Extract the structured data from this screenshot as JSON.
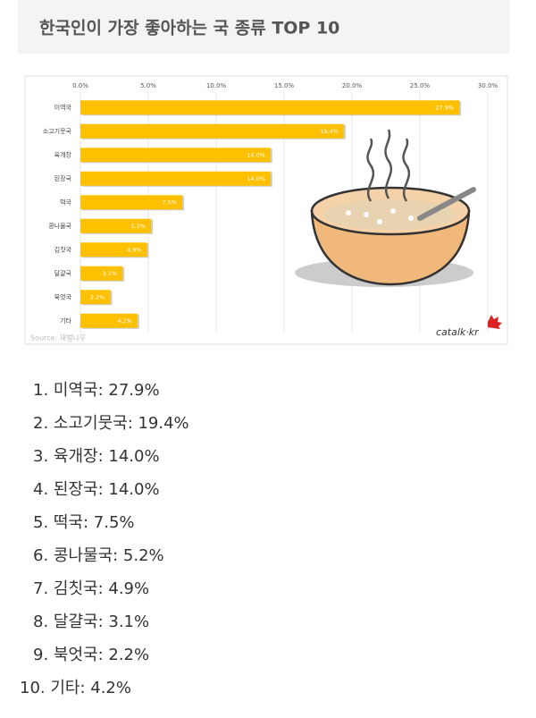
{
  "header": {
    "title": "한국인이 가장 좋아하는 국 종류 TOP 10"
  },
  "chart_data": {
    "type": "hbar",
    "categories": [
      "미역국",
      "소고기뭇국",
      "육개장",
      "된장국",
      "떡국",
      "콩나물국",
      "김칫국",
      "달걀국",
      "북엇국",
      "기타"
    ],
    "values": [
      27.9,
      19.4,
      14.0,
      14.0,
      7.5,
      5.2,
      4.9,
      3.1,
      2.2,
      4.2
    ],
    "value_labels": [
      "27.9%",
      "19.4%",
      "14.0%",
      "14.0%",
      "7.5%",
      "5.2%",
      "4.9%",
      "3.1%",
      "2.2%",
      "4.2%"
    ],
    "color": "#ffc000",
    "xlim": [
      0,
      30
    ],
    "xticks": [
      {
        "value": 0,
        "label": "0.0%"
      },
      {
        "value": 5,
        "label": "5.0%"
      },
      {
        "value": 10,
        "label": "10.0%"
      },
      {
        "value": 15,
        "label": "15.0%"
      },
      {
        "value": 20,
        "label": "20.0%"
      },
      {
        "value": 25,
        "label": "25.0%"
      },
      {
        "value": 30,
        "label": "30.0%"
      }
    ],
    "grid": true,
    "source": "Source: 재벌나우",
    "watermark": "catalk·kr"
  },
  "list": {
    "items": [
      "1. 미역국: 27.9%",
      "2. 소고기뭇국: 19.4%",
      "3. 육개장: 14.0%",
      "4. 된장국: 14.0%",
      "5. 떡국: 7.5%",
      "6. 콩나물국: 5.2%",
      "7. 김칫국: 4.9%",
      "8. 달걀국: 3.1%",
      "9. 북엇국: 2.2%",
      "10. 기타: 4.2%"
    ]
  }
}
